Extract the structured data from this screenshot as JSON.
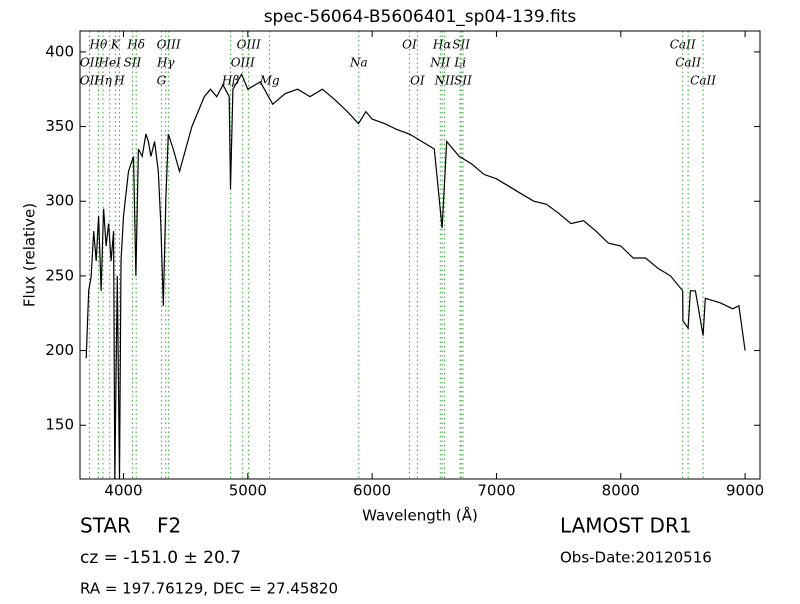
{
  "chart_data": {
    "type": "line",
    "title": "spec-56064-B5606401_sp04-139.fits",
    "x_label": "Wavelength (Å)",
    "y_label": "Flux (relative)",
    "xlim": [
      3650,
      9120
    ],
    "ylim": [
      114,
      414
    ],
    "xticks": [
      4000,
      5000,
      6000,
      7000,
      8000,
      9000
    ],
    "yticks": [
      150,
      200,
      250,
      300,
      350,
      400
    ],
    "color": "#000000",
    "line_color": "#33aa33",
    "x": [
      3700,
      3720,
      3740,
      3760,
      3780,
      3800,
      3820,
      3840,
      3860,
      3880,
      3900,
      3920,
      3930,
      3950,
      3968,
      3980,
      4000,
      4020,
      4040,
      4060,
      4080,
      4100,
      4120,
      4150,
      4180,
      4200,
      4220,
      4250,
      4280,
      4300,
      4320,
      4340,
      4360,
      4400,
      4450,
      4500,
      4550,
      4600,
      4650,
      4700,
      4750,
      4800,
      4850,
      4861,
      4880,
      4950,
      5000,
      5100,
      5200,
      5300,
      5400,
      5500,
      5600,
      5700,
      5800,
      5890,
      5950,
      6000,
      6100,
      6200,
      6300,
      6400,
      6500,
      6563,
      6600,
      6700,
      6800,
      6900,
      7000,
      7100,
      7200,
      7300,
      7400,
      7500,
      7600,
      7700,
      7800,
      7900,
      8000,
      8100,
      8200,
      8300,
      8400,
      8498,
      8500,
      8542,
      8560,
      8600,
      8662,
      8680,
      8800,
      8900,
      8950,
      9000
    ],
    "values": [
      195,
      240,
      250,
      280,
      260,
      290,
      240,
      295,
      270,
      285,
      260,
      280,
      114,
      250,
      114,
      260,
      290,
      305,
      320,
      325,
      330,
      250,
      335,
      330,
      345,
      340,
      330,
      340,
      320,
      285,
      230,
      300,
      345,
      335,
      320,
      335,
      350,
      360,
      370,
      375,
      370,
      378,
      370,
      308,
      375,
      385,
      375,
      380,
      365,
      372,
      375,
      370,
      375,
      368,
      360,
      352,
      360,
      355,
      352,
      348,
      345,
      340,
      335,
      282,
      340,
      330,
      325,
      318,
      315,
      310,
      305,
      300,
      298,
      292,
      285,
      287,
      280,
      272,
      270,
      262,
      262,
      255,
      250,
      240,
      220,
      215,
      240,
      240,
      210,
      235,
      232,
      228,
      230,
      200
    ],
    "lines": [
      {
        "label": "Hθ",
        "wavelength": 3798
      },
      {
        "label": "K",
        "wavelength": 3934
      },
      {
        "label": "Hδ",
        "wavelength": 4102
      },
      {
        "label": "OIII",
        "wavelength": 4363
      },
      {
        "label": "OIII",
        "wavelength": 5007
      },
      {
        "label": "OI",
        "wavelength": 6300
      },
      {
        "label": "Hα",
        "wavelength": 6563
      },
      {
        "label": "SII",
        "wavelength": 6716
      },
      {
        "label": "CaII",
        "wavelength": 8498
      },
      {
        "label": "OII",
        "wavelength": 3727
      },
      {
        "label": "HeI",
        "wavelength": 3889
      },
      {
        "label": "SII",
        "wavelength": 4072
      },
      {
        "label": "Hγ",
        "wavelength": 4340
      },
      {
        "label": "OIII",
        "wavelength": 4959
      },
      {
        "label": "Na",
        "wavelength": 5893
      },
      {
        "label": "NII",
        "wavelength": 6548
      },
      {
        "label": "Li",
        "wavelength": 6708
      },
      {
        "label": "CaII",
        "wavelength": 8542
      },
      {
        "label": "OII",
        "wavelength": 3726
      },
      {
        "label": "Hη",
        "wavelength": 3835
      },
      {
        "label": "H",
        "wavelength": 3968
      },
      {
        "label": "G",
        "wavelength": 4305
      },
      {
        "label": "Hβ",
        "wavelength": 4861
      },
      {
        "label": "Mg",
        "wavelength": 5175
      },
      {
        "label": "OI",
        "wavelength": 6364
      },
      {
        "label": "NII",
        "wavelength": 6583
      },
      {
        "label": "SII",
        "wavelength": 6731
      },
      {
        "label": "CaII",
        "wavelength": 8662
      }
    ]
  },
  "info": {
    "class": "STAR",
    "subclass": "F2",
    "cz": "cz = -151.0  ± 20.7",
    "coords": "RA = 197.76129, DEC = 27.45820",
    "survey": "LAMOST DR1",
    "obs_date": "Obs-Date:20120516"
  }
}
